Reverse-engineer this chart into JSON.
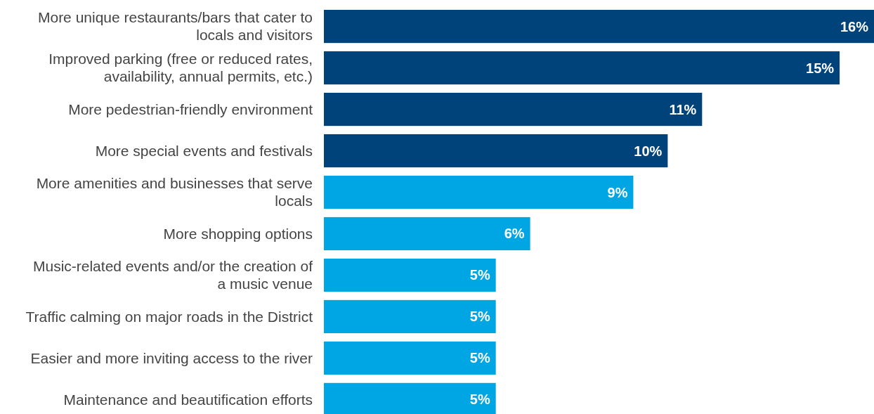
{
  "chart_data": {
    "type": "bar",
    "orientation": "horizontal",
    "value_labels": [
      "16%",
      "15%",
      "11%",
      "10%",
      "9%",
      "6%",
      "5%",
      "5%",
      "5%",
      "5%"
    ],
    "categories": [
      "More unique restaurants/bars that cater to locals and visitors",
      "Improved parking (free or reduced rates, availability, annual permits, etc.)",
      "More pedestrian-friendly environment",
      "More special events and festivals",
      "More amenities and businesses that serve locals",
      "More shopping options",
      "Music-related events and/or the creation of a music venue",
      "Traffic calming on major roads in the District",
      "Easier and more inviting access to the river",
      "Maintenance and beautification efforts"
    ],
    "values": [
      16,
      15,
      11,
      10,
      9,
      6,
      5,
      5,
      5,
      5
    ],
    "colors": [
      "#00427a",
      "#00427a",
      "#00427a",
      "#00427a",
      "#00a5e3",
      "#00a5e3",
      "#00a5e3",
      "#00a5e3",
      "#00a5e3",
      "#00a5e3"
    ]
  }
}
